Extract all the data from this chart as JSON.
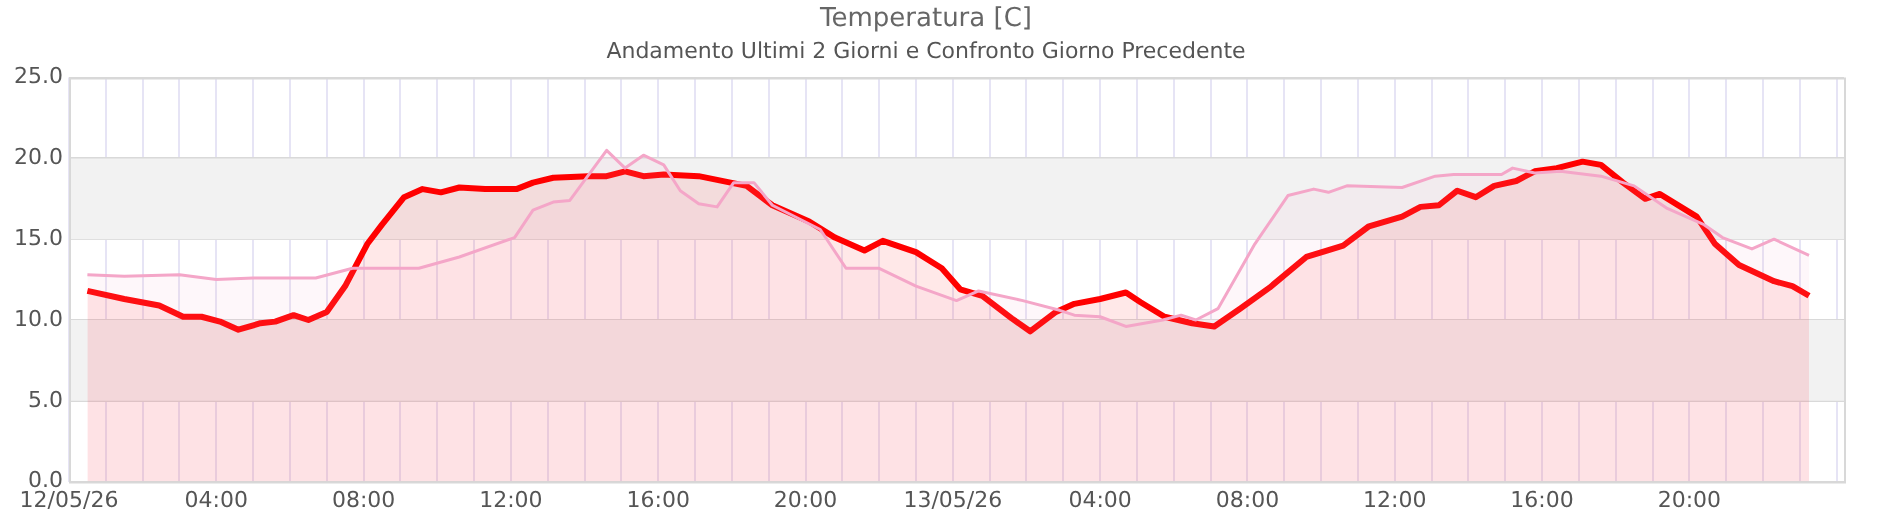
{
  "chart_data": {
    "type": "area",
    "title": "Temperatura [C]",
    "subtitle": "Andamento Ultimi 2 Giorni e Confronto Giorno Precedente",
    "xlim": [
      "--05-12T00:00",
      "--05-14T00:12"
    ],
    "xticks": [
      {
        "value": "--05-12T00:00",
        "label": "12/05/26"
      },
      {
        "value": "--05-12T01:00",
        "label": null
      },
      {
        "value": "--05-12T02:00",
        "label": null
      },
      {
        "value": "--05-12T03:00",
        "label": null
      },
      {
        "value": "--05-12T04:00",
        "label": "04:00"
      },
      {
        "value": "--05-12T05:00",
        "label": null
      },
      {
        "value": "--05-12T06:00",
        "label": null
      },
      {
        "value": "--05-12T07:00",
        "label": null
      },
      {
        "value": "--05-12T08:00",
        "label": "08:00"
      },
      {
        "value": "--05-12T09:00",
        "label": null
      },
      {
        "value": "--05-12T10:00",
        "label": null
      },
      {
        "value": "--05-12T11:00",
        "label": null
      },
      {
        "value": "--05-12T12:00",
        "label": "12:00"
      },
      {
        "value": "--05-12T13:00",
        "label": null
      },
      {
        "value": "--05-12T14:00",
        "label": null
      },
      {
        "value": "--05-12T15:00",
        "label": null
      },
      {
        "value": "--05-12T16:00",
        "label": "16:00"
      },
      {
        "value": "--05-12T17:00",
        "label": null
      },
      {
        "value": "--05-12T18:00",
        "label": null
      },
      {
        "value": "--05-12T19:00",
        "label": null
      },
      {
        "value": "--05-12T20:00",
        "label": "20:00"
      },
      {
        "value": "--05-12T21:00",
        "label": null
      },
      {
        "value": "--05-12T22:00",
        "label": null
      },
      {
        "value": "--05-12T23:00",
        "label": null
      },
      {
        "value": "--05-13T00:00",
        "label": "13/05/26"
      },
      {
        "value": "--05-13T01:00",
        "label": null
      },
      {
        "value": "--05-13T02:00",
        "label": null
      },
      {
        "value": "--05-13T03:00",
        "label": null
      },
      {
        "value": "--05-13T04:00",
        "label": "04:00"
      },
      {
        "value": "--05-13T05:00",
        "label": null
      },
      {
        "value": "--05-13T06:00",
        "label": null
      },
      {
        "value": "--05-13T07:00",
        "label": null
      },
      {
        "value": "--05-13T08:00",
        "label": "08:00"
      },
      {
        "value": "--05-13T09:00",
        "label": null
      },
      {
        "value": "--05-13T10:00",
        "label": null
      },
      {
        "value": "--05-13T11:00",
        "label": null
      },
      {
        "value": "--05-13T12:00",
        "label": "12:00"
      },
      {
        "value": "--05-13T13:00",
        "label": null
      },
      {
        "value": "--05-13T14:00",
        "label": null
      },
      {
        "value": "--05-13T15:00",
        "label": null
      },
      {
        "value": "--05-13T16:00",
        "label": "16:00"
      },
      {
        "value": "--05-13T17:00",
        "label": null
      },
      {
        "value": "--05-13T18:00",
        "label": null
      },
      {
        "value": "--05-13T19:00",
        "label": null
      },
      {
        "value": "--05-13T20:00",
        "label": "20:00"
      },
      {
        "value": "--05-13T21:00",
        "label": null
      },
      {
        "value": "--05-13T22:00",
        "label": null
      },
      {
        "value": "--05-13T23:00",
        "label": null
      },
      {
        "value": "--05-14T00:00",
        "label": null
      }
    ],
    "ylim": [
      0,
      25
    ],
    "yticks": [
      {
        "value": 0,
        "label": "0.0"
      },
      {
        "value": 5,
        "label": "5.0"
      },
      {
        "value": 10,
        "label": "10.0"
      },
      {
        "value": 15,
        "label": "15.0"
      },
      {
        "value": 20,
        "label": "20.0"
      },
      {
        "value": 25,
        "label": "25.0"
      }
    ],
    "grid": true,
    "legend": false,
    "marker": "none",
    "bands": [
      {
        "axis": "y",
        "from": 5,
        "to": 10,
        "color": "#f2f2f2"
      },
      {
        "axis": "y",
        "from": 15,
        "to": 20,
        "color": "#f2f2f2"
      }
    ],
    "series": [
      {
        "color": "#f4a6c8",
        "x": [
          "--05-12T00:30",
          "--05-12T01:30",
          "--05-12T03:00",
          "--05-12T04:00",
          "--05-12T05:00",
          "--05-12T06:42",
          "--05-12T07:42",
          "--05-12T09:30",
          "--05-12T10:36",
          "--05-12T12:06",
          "--05-12T12:36",
          "--05-12T13:09",
          "--05-12T13:36",
          "--05-12T14:36",
          "--05-12T15:06",
          "--05-12T15:36",
          "--05-12T16:09",
          "--05-12T16:36",
          "--05-12T17:06",
          "--05-12T17:36",
          "--05-12T18:03",
          "--05-12T18:36",
          "--05-12T19:06",
          "--05-12T20:24",
          "--05-12T21:06",
          "--05-12T22:00",
          "--05-12T23:00",
          "--05-13T00:06",
          "--05-13T00:42",
          "--05-13T01:54",
          "--05-13T02:54",
          "--05-13T03:18",
          "--05-13T04:00",
          "--05-13T04:42",
          "--05-13T05:42",
          "--05-13T06:12",
          "--05-13T06:36",
          "--05-13T07:12",
          "--05-13T08:12",
          "--05-13T09:06",
          "--05-13T09:48",
          "--05-13T10:12",
          "--05-13T10:42",
          "--05-13T12:12",
          "--05-13T13:06",
          "--05-13T13:36",
          "--05-13T14:54",
          "--05-13T15:12",
          "--05-13T15:48",
          "--05-13T16:30",
          "--05-13T17:36",
          "--05-13T18:30",
          "--05-13T19:24",
          "--05-13T20:24",
          "--05-13T20:54",
          "--05-13T21:42",
          "--05-13T22:18",
          "--05-13T23:15"
        ],
        "values": [
          12.8,
          12.7,
          12.8,
          12.5,
          12.6,
          12.6,
          13.2,
          13.2,
          13.9,
          15.1,
          16.8,
          17.3,
          17.4,
          20.5,
          19.4,
          20.2,
          19.6,
          18,
          17.2,
          17,
          18.5,
          18.5,
          17.1,
          15.6,
          13.2,
          13.2,
          12.1,
          11.2,
          11.8,
          11.2,
          10.6,
          10.3,
          10.2,
          9.6,
          10,
          10.3,
          10,
          10.7,
          14.7,
          17.7,
          18.1,
          17.9,
          18.3,
          18.2,
          18.9,
          19,
          19,
          19.4,
          19.1,
          19.2,
          18.9,
          18.3,
          16.9,
          15.9,
          15.1,
          14.4,
          15,
          14
        ]
      },
      {
        "color": "#ff0000",
        "x": [
          "--05-12T00:30",
          "--05-12T01:30",
          "--05-12T02:27",
          "--05-12T03:06",
          "--05-12T03:36",
          "--05-12T04:06",
          "--05-12T04:36",
          "--05-12T05:12",
          "--05-12T05:36",
          "--05-12T06:06",
          "--05-12T06:30",
          "--05-12T07:00",
          "--05-12T07:30",
          "--05-12T08:06",
          "--05-12T08:30",
          "--05-12T09:06",
          "--05-12T09:36",
          "--05-12T10:06",
          "--05-12T10:36",
          "--05-12T11:18",
          "--05-12T12:09",
          "--05-12T12:36",
          "--05-12T13:09",
          "--05-12T14:06",
          "--05-12T14:36",
          "--05-12T15:06",
          "--05-12T15:36",
          "--05-12T16:09",
          "--05-12T17:06",
          "--05-12T18:24",
          "--05-12T19:06",
          "--05-12T20:06",
          "--05-12T20:48",
          "--05-12T21:36",
          "--05-12T22:06",
          "--05-12T23:00",
          "--05-12T23:42",
          "--05-13T00:12",
          "--05-13T00:48",
          "--05-13T01:36",
          "--05-13T02:06",
          "--05-13T02:48",
          "--05-13T03:18",
          "--05-13T04:00",
          "--05-13T04:42",
          "--05-13T05:06",
          "--05-13T05:45",
          "--05-13T06:30",
          "--05-13T07:06",
          "--05-13T07:48",
          "--05-13T08:36",
          "--05-13T09:36",
          "--05-13T10:36",
          "--05-13T11:18",
          "--05-13T12:12",
          "--05-13T12:42",
          "--05-13T13:12",
          "--05-13T13:42",
          "--05-13T14:12",
          "--05-13T14:42",
          "--05-13T15:18",
          "--05-13T15:48",
          "--05-13T16:24",
          "--05-13T17:06",
          "--05-13T17:36",
          "--05-13T18:12",
          "--05-13T18:48",
          "--05-13T19:12",
          "--05-13T20:12",
          "--05-13T20:42",
          "--05-13T21:21",
          "--05-13T22:18",
          "--05-13T22:48",
          "--05-13T23:15"
        ],
        "values": [
          11.8,
          11.3,
          10.9,
          10.2,
          10.2,
          9.9,
          9.4,
          9.8,
          9.9,
          10.3,
          10,
          10.5,
          12.1,
          14.7,
          15.9,
          17.6,
          18.1,
          17.9,
          18.2,
          18.1,
          18.1,
          18.5,
          18.8,
          18.9,
          18.9,
          19.2,
          18.9,
          19,
          18.9,
          18.3,
          17.1,
          16.1,
          15.1,
          14.3,
          14.9,
          14.2,
          13.2,
          11.9,
          11.5,
          10.1,
          9.3,
          10.5,
          11,
          11.3,
          11.7,
          11.1,
          10.2,
          9.8,
          9.6,
          10.7,
          12,
          13.9,
          14.6,
          15.8,
          16.4,
          17,
          17.1,
          18,
          17.6,
          18.3,
          18.6,
          19.2,
          19.4,
          19.8,
          19.6,
          18.5,
          17.5,
          17.8,
          16.4,
          14.7,
          13.4,
          12.4,
          12.1,
          11.5
        ]
      }
    ]
  }
}
